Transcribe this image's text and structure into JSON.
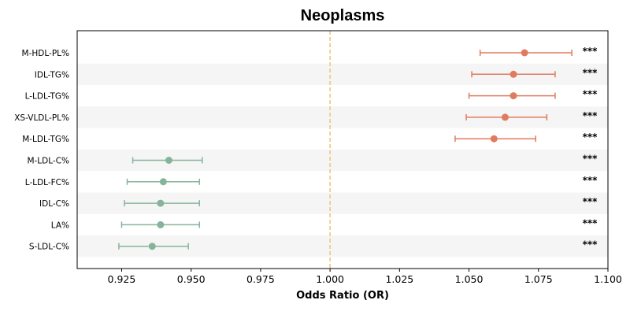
{
  "chart_data": {
    "type": "forest",
    "title": "Neoplasms",
    "xlabel": "Odds Ratio (OR)",
    "xlim": [
      0.909,
      1.1
    ],
    "xticks": [
      "0.925",
      "0.950",
      "0.975",
      "1.000",
      "1.025",
      "1.050",
      "1.075",
      "1.100"
    ],
    "reference_line": 1.0,
    "colors": {
      "positive": "#e07b5f",
      "negative": "#86b49b",
      "reference": "#f0c67a",
      "stripe": "#f5f5f5"
    },
    "rows": [
      {
        "label": "M-HDL-PL%",
        "or": 1.07,
        "lo": 1.054,
        "hi": 1.087,
        "sig": "***"
      },
      {
        "label": "IDL-TG%",
        "or": 1.066,
        "lo": 1.051,
        "hi": 1.081,
        "sig": "***"
      },
      {
        "label": "L-LDL-TG%",
        "or": 1.066,
        "lo": 1.05,
        "hi": 1.081,
        "sig": "***"
      },
      {
        "label": "XS-VLDL-PL%",
        "or": 1.063,
        "lo": 1.049,
        "hi": 1.078,
        "sig": "***"
      },
      {
        "label": "M-LDL-TG%",
        "or": 1.059,
        "lo": 1.045,
        "hi": 1.074,
        "sig": "***"
      },
      {
        "label": "M-LDL-C%",
        "or": 0.942,
        "lo": 0.929,
        "hi": 0.954,
        "sig": "***"
      },
      {
        "label": "L-LDL-FC%",
        "or": 0.94,
        "lo": 0.927,
        "hi": 0.953,
        "sig": "***"
      },
      {
        "label": "IDL-C%",
        "or": 0.939,
        "lo": 0.926,
        "hi": 0.953,
        "sig": "***"
      },
      {
        "label": "LA%",
        "or": 0.939,
        "lo": 0.925,
        "hi": 0.953,
        "sig": "***"
      },
      {
        "label": "S-LDL-C%",
        "or": 0.936,
        "lo": 0.924,
        "hi": 0.949,
        "sig": "***"
      }
    ]
  }
}
